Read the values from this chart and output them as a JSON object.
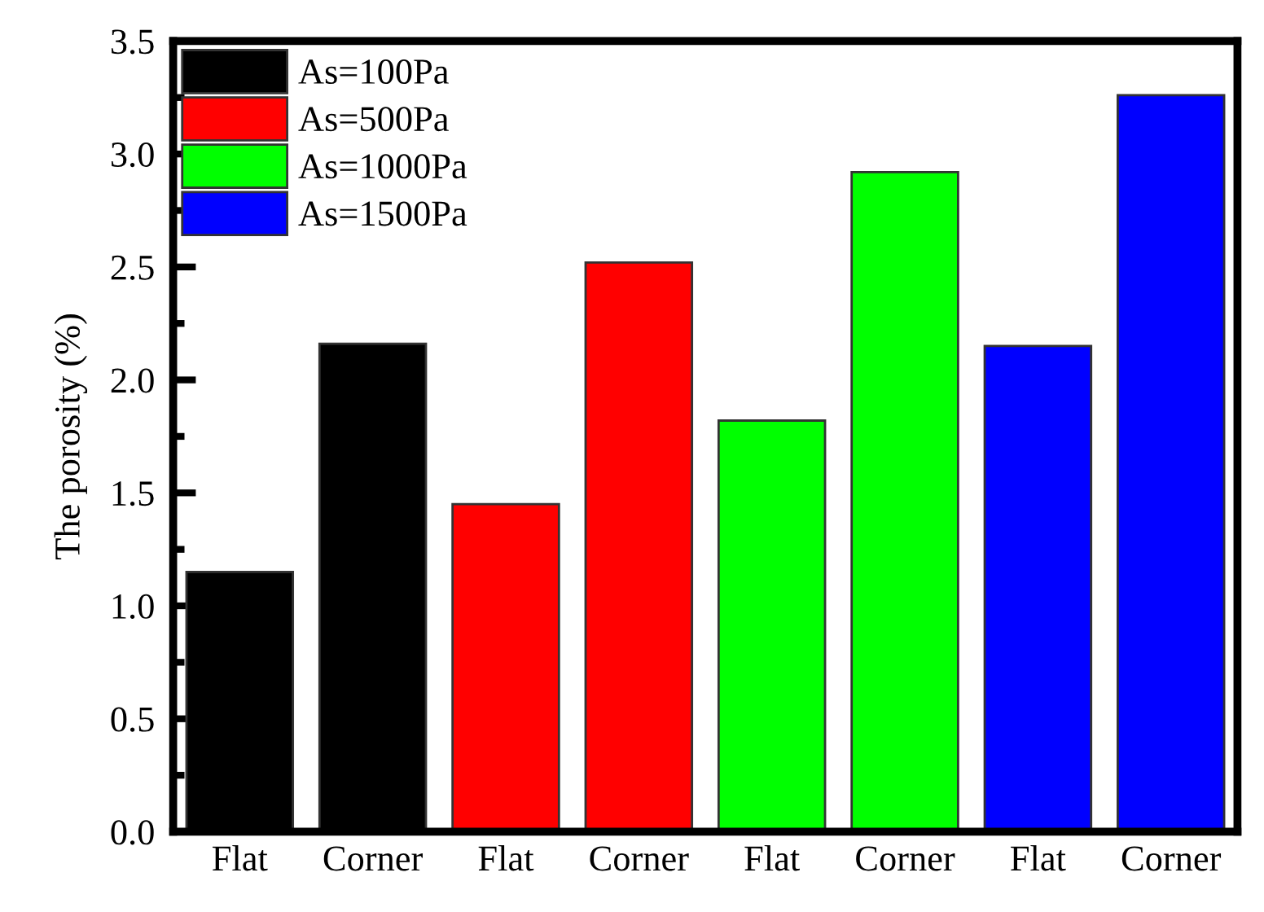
{
  "chart_data": {
    "type": "bar",
    "ylabel": "The porosity (%)",
    "categories": [
      "Flat",
      "Corner",
      "Flat",
      "Corner",
      "Flat",
      "Corner",
      "Flat",
      "Corner"
    ],
    "series": [
      {
        "name": "As=100Pa",
        "color": "#000000",
        "values": [
          1.15,
          2.16,
          null,
          null,
          null,
          null,
          null,
          null
        ]
      },
      {
        "name": "As=500Pa",
        "color": "#ff0000",
        "values": [
          null,
          null,
          1.45,
          2.52,
          null,
          null,
          null,
          null
        ]
      },
      {
        "name": "As=1000Pa",
        "color": "#00ff00",
        "values": [
          null,
          null,
          null,
          null,
          1.82,
          2.92,
          null,
          null
        ]
      },
      {
        "name": "As=1500Pa",
        "color": "#0000ff",
        "values": [
          null,
          null,
          null,
          null,
          null,
          null,
          2.15,
          3.26
        ]
      }
    ],
    "ylim": [
      0,
      3.5
    ],
    "yticks": [
      {
        "value": 0,
        "label": "0.0"
      },
      0.5,
      {
        "value": 1,
        "label": "1.0"
      },
      1.5,
      {
        "value": 2,
        "label": "2.0"
      },
      2.5,
      {
        "value": 3,
        "label": "3.0"
      },
      3.5
    ],
    "legend": "top left",
    "grid": false
  }
}
